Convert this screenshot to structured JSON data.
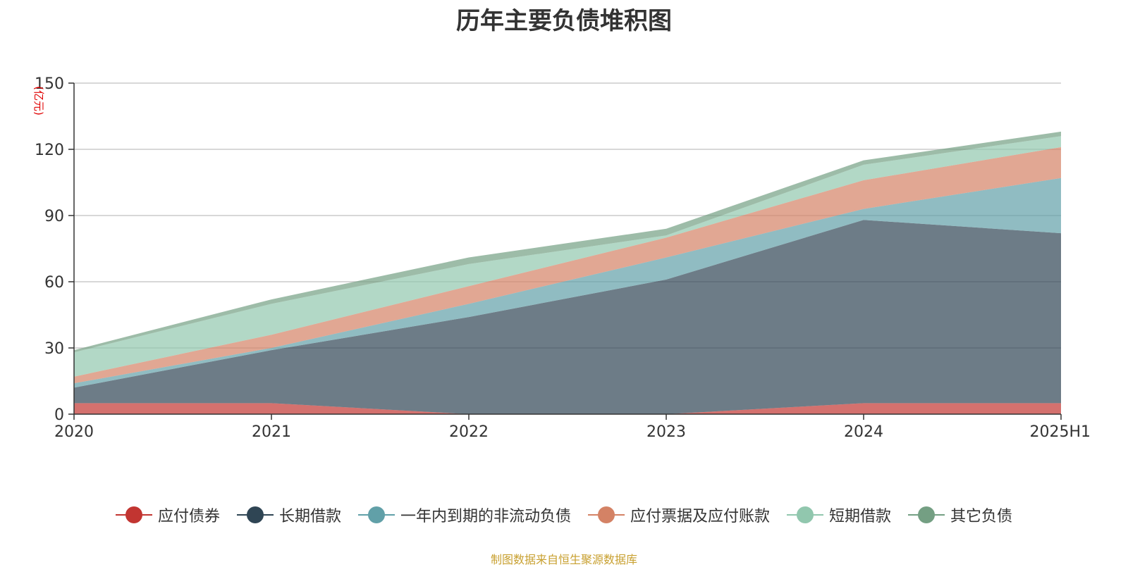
{
  "chart_data": {
    "type": "area",
    "stacked": true,
    "title": "历年主要负债堆积图",
    "unit": "(亿元)",
    "x": [
      "2020",
      "2021",
      "2022",
      "2023",
      "2024",
      "2025H1"
    ],
    "ylim": [
      0,
      150
    ],
    "yticks": [
      "0",
      "30",
      "60",
      "90",
      "120",
      "150"
    ],
    "grid": true,
    "legend_position": "bottom",
    "series": [
      {
        "name": "应付债券",
        "color": "#c23531",
        "values": [
          5,
          5,
          0,
          0,
          5,
          5
        ]
      },
      {
        "name": "长期借款",
        "color": "#2f4554",
        "values": [
          7,
          24,
          44,
          61,
          83,
          77
        ]
      },
      {
        "name": "一年内到期的非流动负债",
        "color": "#61a0a8",
        "values": [
          2,
          1,
          6,
          10,
          5,
          25
        ]
      },
      {
        "name": "应付票据及应付账款",
        "color": "#d48265",
        "values": [
          3,
          6,
          8,
          9,
          13,
          14
        ]
      },
      {
        "name": "短期借款",
        "color": "#91c7ae",
        "values": [
          11,
          14,
          10,
          1,
          7,
          5
        ]
      },
      {
        "name": "其它负债",
        "color": "#749f83",
        "values": [
          1,
          2,
          3,
          3,
          2,
          2
        ]
      }
    ]
  },
  "source_note": "制图数据来自恒生聚源数据库"
}
